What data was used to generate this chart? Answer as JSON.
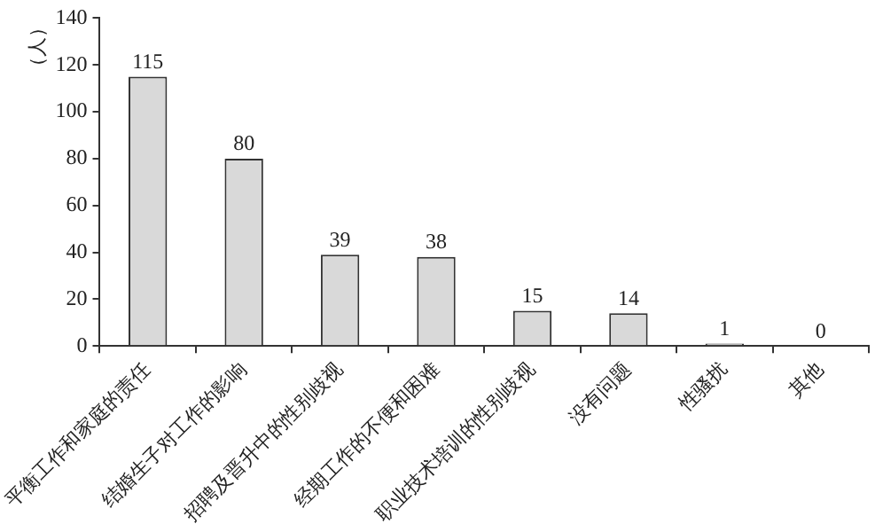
{
  "chart_data": {
    "type": "bar",
    "ylabel": "（人）",
    "categories": [
      "平衡工作和家庭的责任",
      "结婚生子对工作的影响",
      "招聘及晋升中的性别歧视",
      "经期工作的不便和困难",
      "职业技术培训的性别歧视",
      "没有问题",
      "性骚扰",
      "其他"
    ],
    "values": [
      115,
      80,
      39,
      38,
      15,
      14,
      1,
      0
    ],
    "color": "#d9d9d9",
    "ylim": [
      0,
      140
    ],
    "yticks": [
      0,
      20,
      40,
      60,
      80,
      100,
      120,
      140
    ],
    "grid": false,
    "data_labels": true,
    "legend": false
  }
}
